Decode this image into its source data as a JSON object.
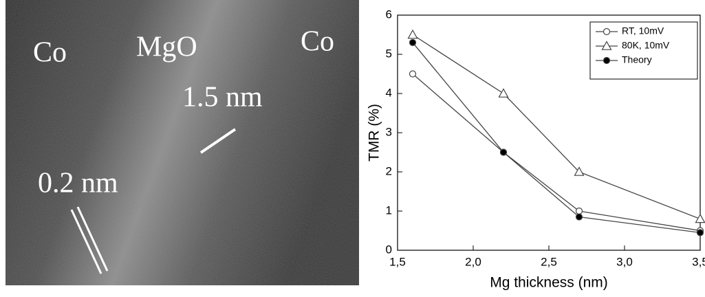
{
  "micrograph": {
    "labels": [
      "Co",
      "MgO",
      "Co",
      "1.5 nm",
      "0.2 nm"
    ]
  },
  "chart_data": {
    "type": "line",
    "x": [
      1.6,
      2.2,
      2.7,
      3.5
    ],
    "series": [
      {
        "name": "RT, 10mV",
        "color": "#444444",
        "marker": "circle-open",
        "values": [
          4.5,
          2.5,
          1.0,
          0.5
        ]
      },
      {
        "name": "80K, 10mV",
        "color": "#444444",
        "marker": "triangle-open",
        "values": [
          5.5,
          4.0,
          2.0,
          0.8
        ]
      },
      {
        "name": "Theory",
        "color": "#444444",
        "marker": "circle-filled",
        "values": [
          5.3,
          2.5,
          0.85,
          0.45
        ]
      }
    ],
    "xlabel": "Mg thickness (nm)",
    "ylabel": "TMR (%)",
    "xlim": [
      1.5,
      3.5
    ],
    "xticks": [
      {
        "value": 1.5,
        "label": "1,5"
      },
      {
        "value": 2.0,
        "label": "2,0"
      },
      {
        "value": 2.5,
        "label": "2,5"
      },
      {
        "value": 3.0,
        "label": "3,0"
      },
      {
        "value": 3.5,
        "label": "3,5"
      }
    ],
    "ylim": [
      0,
      6
    ],
    "yticks": [
      0,
      1,
      2,
      3,
      4,
      5,
      6
    ],
    "legend": "upper right"
  }
}
